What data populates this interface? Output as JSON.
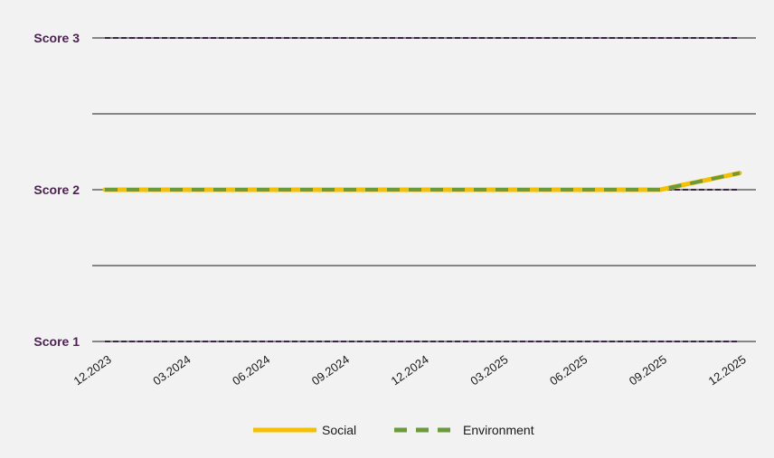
{
  "chart_data": {
    "type": "line",
    "title": "",
    "xlabel": "",
    "ylabel": "",
    "categories": [
      "12.2023",
      "03.2024",
      "06.2024",
      "09.2024",
      "12.2024",
      "03.2025",
      "06.2025",
      "09.2025",
      "12.2025"
    ],
    "x_range": [
      0,
      24
    ],
    "ylim": [
      1,
      3
    ],
    "grid": true,
    "gridlines": [
      1,
      1.5,
      2,
      2.5,
      3
    ],
    "y_tick_labels": [
      {
        "value": 1,
        "label": "Score 1"
      },
      {
        "value": 2,
        "label": "Score 2"
      },
      {
        "value": 3,
        "label": "Score 3"
      }
    ],
    "reference_lines": [
      {
        "value": 1,
        "style": "dashed",
        "color": "#3b2444"
      },
      {
        "value": 2,
        "style": "dashed",
        "color": "#3b2444"
      },
      {
        "value": 3,
        "style": "dashed",
        "color": "#3b2444"
      }
    ],
    "legend_position": "bottom",
    "series": [
      {
        "name": "Social",
        "color": "#f5c000",
        "style": "solid",
        "points": [
          [
            "12.2023",
            2.0
          ],
          [
            "09.2025",
            2.0
          ],
          [
            "12.2025",
            2.11
          ]
        ]
      },
      {
        "name": "Environment",
        "color": "#6a9a3a",
        "style": "dashed",
        "points": [
          [
            "12.2023",
            2.0
          ],
          [
            "09.2025",
            2.0
          ],
          [
            "12.2025",
            2.11
          ]
        ]
      }
    ]
  }
}
